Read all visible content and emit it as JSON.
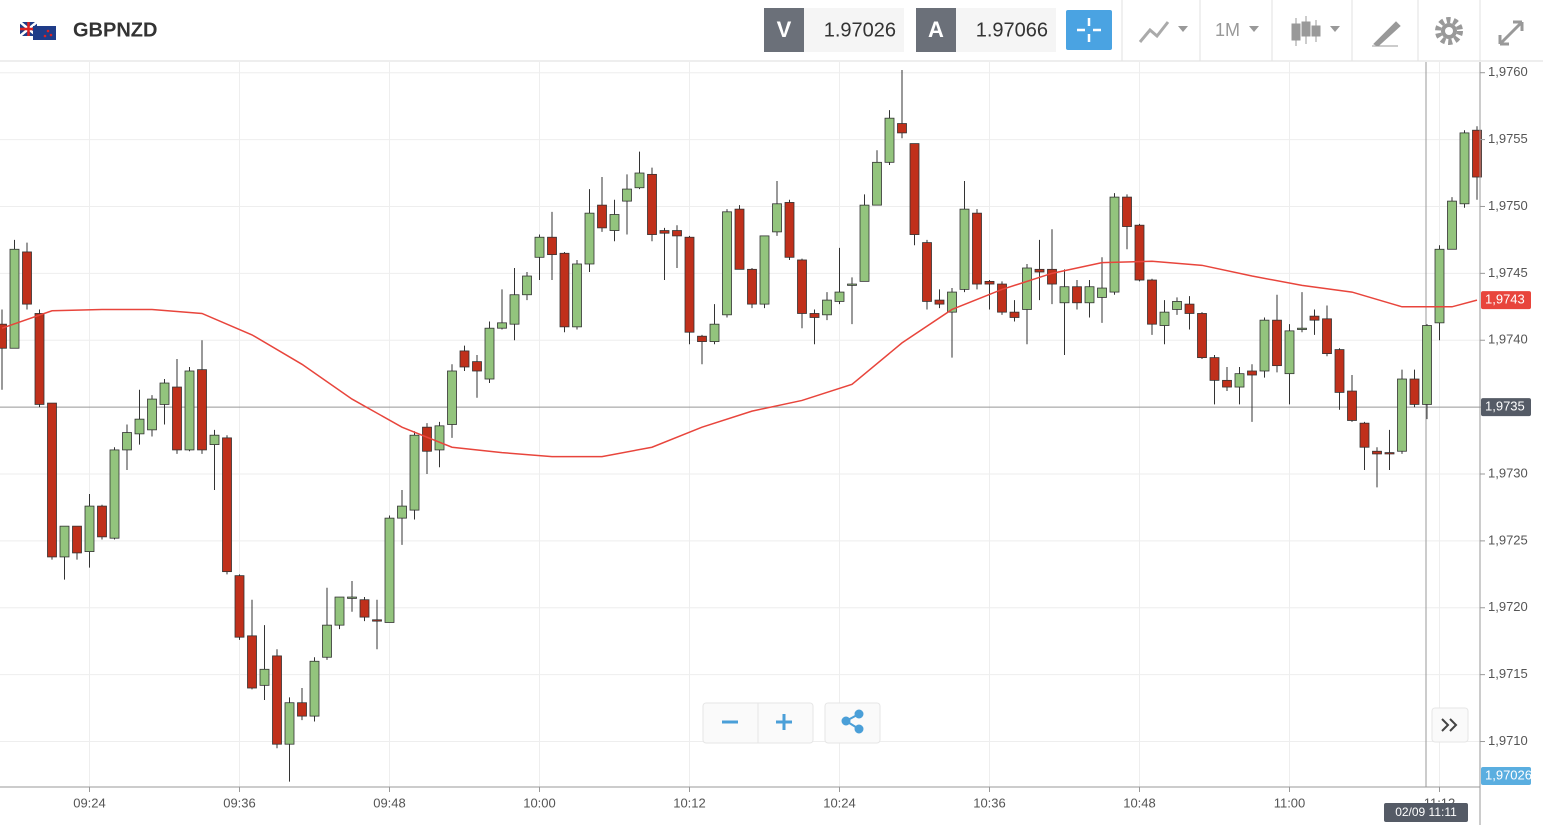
{
  "toolbar": {
    "bid_label": "V",
    "bid": 1.97026,
    "ask_label": "A",
    "ask": 1.97066,
    "timeframe": "1M"
  },
  "chart_data": {
    "type": "candlestick",
    "title": "GBPNZD",
    "x": [
      "09:17",
      "09:18",
      "09:19",
      "09:20",
      "09:21",
      "09:22",
      "09:23",
      "09:24",
      "09:25",
      "09:26",
      "09:27",
      "09:28",
      "09:29",
      "09:30",
      "09:31",
      "09:32",
      "09:33",
      "09:34",
      "09:35",
      "09:36",
      "09:37",
      "09:38",
      "09:39",
      "09:40",
      "09:41",
      "09:42",
      "09:43",
      "09:44",
      "09:45",
      "09:46",
      "09:47",
      "09:48",
      "09:49",
      "09:50",
      "09:51",
      "09:52",
      "09:53",
      "09:54",
      "09:55",
      "09:56",
      "09:57",
      "09:58",
      "09:59",
      "10:00",
      "10:01",
      "10:02",
      "10:03",
      "10:04",
      "10:05",
      "10:06",
      "10:07",
      "10:08",
      "10:09",
      "10:10",
      "10:11",
      "10:12",
      "10:13",
      "10:14",
      "10:15",
      "10:16",
      "10:17",
      "10:18",
      "10:19",
      "10:20",
      "10:21",
      "10:22",
      "10:23",
      "10:24",
      "10:25",
      "10:26",
      "10:27",
      "10:28",
      "10:29",
      "10:30",
      "10:31",
      "10:32",
      "10:33",
      "10:34",
      "10:35",
      "10:36",
      "10:37",
      "10:38",
      "10:39",
      "10:40",
      "10:41",
      "10:42",
      "10:43",
      "10:44",
      "10:45",
      "10:46",
      "10:47",
      "10:48",
      "10:49",
      "10:50",
      "10:51",
      "10:52",
      "10:53",
      "10:54",
      "10:55",
      "10:56",
      "10:57",
      "10:58",
      "10:59",
      "11:00",
      "11:01",
      "11:02",
      "11:03",
      "11:04",
      "11:05",
      "11:06",
      "11:07",
      "11:08",
      "11:09",
      "11:10",
      "11:11",
      "11:12",
      "11:13",
      "11:14",
      "11:15"
    ],
    "open": [
      1.97412,
      1.97394,
      1.97466,
      1.9742,
      1.97353,
      1.97238,
      1.97261,
      1.97242,
      1.97276,
      1.97252,
      1.97318,
      1.9733,
      1.97333,
      1.97352,
      1.97365,
      1.97318,
      1.97378,
      1.97322,
      1.97327,
      1.97224,
      1.97179,
      1.97142,
      1.97164,
      1.97098,
      1.97129,
      1.97119,
      1.97163,
      1.97187,
      1.97207,
      1.97206,
      1.97191,
      1.97189,
      1.97267,
      1.97273,
      1.97335,
      1.97318,
      1.97337,
      1.97392,
      1.97384,
      1.97371,
      1.97409,
      1.97412,
      1.97434,
      1.97462,
      1.97477,
      1.97465,
      1.9741,
      1.97457,
      1.97501,
      1.97482,
      1.97504,
      1.97514,
      1.97524,
      1.97482,
      1.97482,
      1.97477,
      1.97403,
      1.97399,
      1.97419,
      1.97498,
      1.97453,
      1.97427,
      1.97481,
      1.97503,
      1.9746,
      1.9742,
      1.97419,
      1.97429,
      1.97441,
      1.97444,
      1.97501,
      1.97533,
      1.97562,
      1.97547,
      1.97473,
      1.9743,
      1.97421,
      1.97438,
      1.97495,
      1.97444,
      1.97442,
      1.97421,
      1.97423,
      1.97453,
      1.97453,
      1.97428,
      1.9744,
      1.97428,
      1.97432,
      1.97436,
      1.97507,
      1.97486,
      1.97445,
      1.97411,
      1.97423,
      1.97427,
      1.9742,
      1.97387,
      1.9737,
      1.97365,
      1.97377,
      1.97377,
      1.97415,
      1.97375,
      1.97408,
      1.97418,
      1.97416,
      1.97393,
      1.97362,
      1.97338,
      1.97317,
      1.97316,
      1.97317,
      1.97371,
      1.97352,
      1.97413,
      1.97468,
      1.97502,
      1.97557
    ],
    "high": [
      1.97423,
      1.97475,
      1.97473,
      1.97423,
      1.97353,
      1.97261,
      1.97261,
      1.97285,
      1.97277,
      1.9732,
      1.97337,
      1.97363,
      1.97359,
      1.97371,
      1.97386,
      1.9738,
      1.974,
      1.97333,
      1.97329,
      1.97225,
      1.97206,
      1.97187,
      1.97169,
      1.97133,
      1.9714,
      1.97163,
      1.97215,
      1.97208,
      1.9722,
      1.97208,
      1.97206,
      1.97269,
      1.97288,
      1.97332,
      1.97338,
      1.97339,
      1.97382,
      1.97396,
      1.97389,
      1.97414,
      1.97438,
      1.97454,
      1.97451,
      1.97479,
      1.97496,
      1.97466,
      1.9746,
      1.97513,
      1.97522,
      1.97505,
      1.97524,
      1.97541,
      1.97529,
      1.97484,
      1.97486,
      1.97478,
      1.97404,
      1.97427,
      1.97498,
      1.97501,
      1.97454,
      1.97478,
      1.97519,
      1.97505,
      1.97461,
      1.97423,
      1.97436,
      1.97469,
      1.97447,
      1.97509,
      1.97542,
      1.97572,
      1.97602,
      1.97547,
      1.97475,
      1.97438,
      1.97439,
      1.97519,
      1.97498,
      1.97445,
      1.97444,
      1.9743,
      1.97457,
      1.97475,
      1.97483,
      1.97453,
      1.97445,
      1.97445,
      1.97462,
      1.9751,
      1.97509,
      1.97487,
      1.97446,
      1.9743,
      1.97432,
      1.97433,
      1.97421,
      1.97389,
      1.9738,
      1.9738,
      1.97382,
      1.97417,
      1.97434,
      1.97412,
      1.97436,
      1.97423,
      1.97426,
      1.97394,
      1.97374,
      1.97339,
      1.9732,
      1.97333,
      1.97378,
      1.97378,
      1.97412,
      1.97471,
      1.97507,
      1.97557,
      1.9756
    ],
    "low": [
      1.97363,
      1.97394,
      1.97423,
      1.9735,
      1.97236,
      1.97221,
      1.97236,
      1.9723,
      1.97251,
      1.97251,
      1.97303,
      1.97322,
      1.97328,
      1.97337,
      1.97315,
      1.97317,
      1.97315,
      1.97288,
      1.97225,
      1.97176,
      1.97139,
      1.97131,
      1.97095,
      1.9707,
      1.97116,
      1.97115,
      1.97161,
      1.97184,
      1.97197,
      1.9719,
      1.97169,
      1.97189,
      1.97247,
      1.97266,
      1.973,
      1.97305,
      1.97327,
      1.97377,
      1.97357,
      1.97368,
      1.97408,
      1.974,
      1.9743,
      1.97445,
      1.97445,
      1.97406,
      1.97408,
      1.97451,
      1.97481,
      1.97474,
      1.97479,
      1.97513,
      1.97474,
      1.97445,
      1.97454,
      1.97397,
      1.97382,
      1.97397,
      1.97417,
      1.97453,
      1.97424,
      1.97424,
      1.97478,
      1.9746,
      1.97409,
      1.97397,
      1.97415,
      1.97427,
      1.97412,
      1.97444,
      1.97501,
      1.97531,
      1.97551,
      1.97471,
      1.97423,
      1.97424,
      1.97387,
      1.97436,
      1.97438,
      1.97423,
      1.97419,
      1.97414,
      1.97397,
      1.9743,
      1.97427,
      1.97389,
      1.97423,
      1.97417,
      1.97413,
      1.97434,
      1.97468,
      1.97444,
      1.97404,
      1.97397,
      1.97419,
      1.97408,
      1.97386,
      1.97352,
      1.97362,
      1.97352,
      1.97339,
      1.97372,
      1.97376,
      1.97352,
      1.97406,
      1.97404,
      1.97388,
      1.97348,
      1.97339,
      1.97303,
      1.9729,
      1.97303,
      1.97315,
      1.9735,
      1.97341,
      1.974,
      1.97468,
      1.97499,
      1.97505
    ],
    "close": [
      1.97394,
      1.97468,
      1.97427,
      1.97352,
      1.97238,
      1.97261,
      1.97241,
      1.97276,
      1.97253,
      1.97318,
      1.97331,
      1.97341,
      1.97356,
      1.97368,
      1.97318,
      1.97377,
      1.97318,
      1.97329,
      1.97227,
      1.97178,
      1.9714,
      1.97154,
      1.97098,
      1.97129,
      1.97119,
      1.9716,
      1.97187,
      1.97208,
      1.97208,
      1.97193,
      1.9719,
      1.97267,
      1.97276,
      1.97329,
      1.97317,
      1.97336,
      1.97377,
      1.9738,
      1.97377,
      1.97409,
      1.97413,
      1.97434,
      1.97448,
      1.97477,
      1.97464,
      1.9741,
      1.97457,
      1.97495,
      1.97484,
      1.97494,
      1.97513,
      1.97525,
      1.97479,
      1.9748,
      1.97478,
      1.97406,
      1.97399,
      1.97412,
      1.97496,
      1.97453,
      1.97427,
      1.97478,
      1.97502,
      1.97462,
      1.9742,
      1.97417,
      1.9743,
      1.97436,
      1.97442,
      1.97501,
      1.97533,
      1.97566,
      1.97555,
      1.97479,
      1.97429,
      1.97427,
      1.97436,
      1.97498,
      1.97442,
      1.97442,
      1.97421,
      1.97417,
      1.97454,
      1.97451,
      1.97442,
      1.9744,
      1.97428,
      1.9744,
      1.97439,
      1.97507,
      1.97485,
      1.97445,
      1.97412,
      1.97421,
      1.97429,
      1.9742,
      1.97387,
      1.9737,
      1.97365,
      1.97375,
      1.97374,
      1.97415,
      1.97381,
      1.97407,
      1.97409,
      1.97415,
      1.9739,
      1.97361,
      1.9734,
      1.9732,
      1.97315,
      1.97315,
      1.97371,
      1.97352,
      1.97411,
      1.97468,
      1.97504,
      1.97555,
      1.97522
    ],
    "up_color": "#93c47d",
    "down_color": "#c0301b",
    "ma": {
      "color": "#e8453c",
      "x": [
        "09:17",
        "09:21",
        "09:25",
        "09:29",
        "09:33",
        "09:37",
        "09:41",
        "09:45",
        "09:49",
        "09:53",
        "09:57",
        "10:01",
        "10:05",
        "10:09",
        "10:13",
        "10:17",
        "10:21",
        "10:25",
        "10:29",
        "10:33",
        "10:37",
        "10:41",
        "10:45",
        "10:49",
        "10:53",
        "10:57",
        "11:01",
        "11:05",
        "11:09",
        "11:13",
        "11:15"
      ],
      "values": [
        1.97409,
        1.97422,
        1.97423,
        1.97423,
        1.9742,
        1.97404,
        1.97382,
        1.97356,
        1.97335,
        1.9732,
        1.97316,
        1.97313,
        1.97313,
        1.9732,
        1.97335,
        1.97347,
        1.97355,
        1.97367,
        1.97398,
        1.97423,
        1.97438,
        1.9745,
        1.97458,
        1.97459,
        1.97456,
        1.97448,
        1.97441,
        1.97436,
        1.97425,
        1.97425,
        1.9743
      ],
      "tag": {
        "value": 1.9743,
        "label": "1,9743"
      }
    },
    "crosshair": {
      "y": {
        "value": 1.9735,
        "label": "1,9735"
      },
      "x_label": "02/09 11:11"
    },
    "price_tag": {
      "value": 1.97026,
      "label": "1,97026"
    },
    "ylim": [
      1.97066,
      1.97608
    ],
    "yticks": [
      {
        "value": 1.971,
        "label": "1,9710"
      },
      {
        "value": 1.9715,
        "label": "1,9715"
      },
      {
        "value": 1.972,
        "label": "1,9720"
      },
      {
        "value": 1.9725,
        "label": "1,9725"
      },
      {
        "value": 1.973,
        "label": "1,9730"
      },
      {
        "value": 1.9735,
        "label": "1,9735"
      },
      {
        "value": 1.974,
        "label": "1,9740"
      },
      {
        "value": 1.9745,
        "label": "1,9745"
      },
      {
        "value": 1.975,
        "label": "1,9750"
      },
      {
        "value": 1.9755,
        "label": "1,9755"
      },
      {
        "value": 1.976,
        "label": "1,9760"
      }
    ],
    "xticks": [
      "09:24",
      "09:36",
      "09:48",
      "10:00",
      "10:12",
      "10:24",
      "10:36",
      "10:48",
      "11:00",
      "11:12"
    ],
    "grid": true
  }
}
